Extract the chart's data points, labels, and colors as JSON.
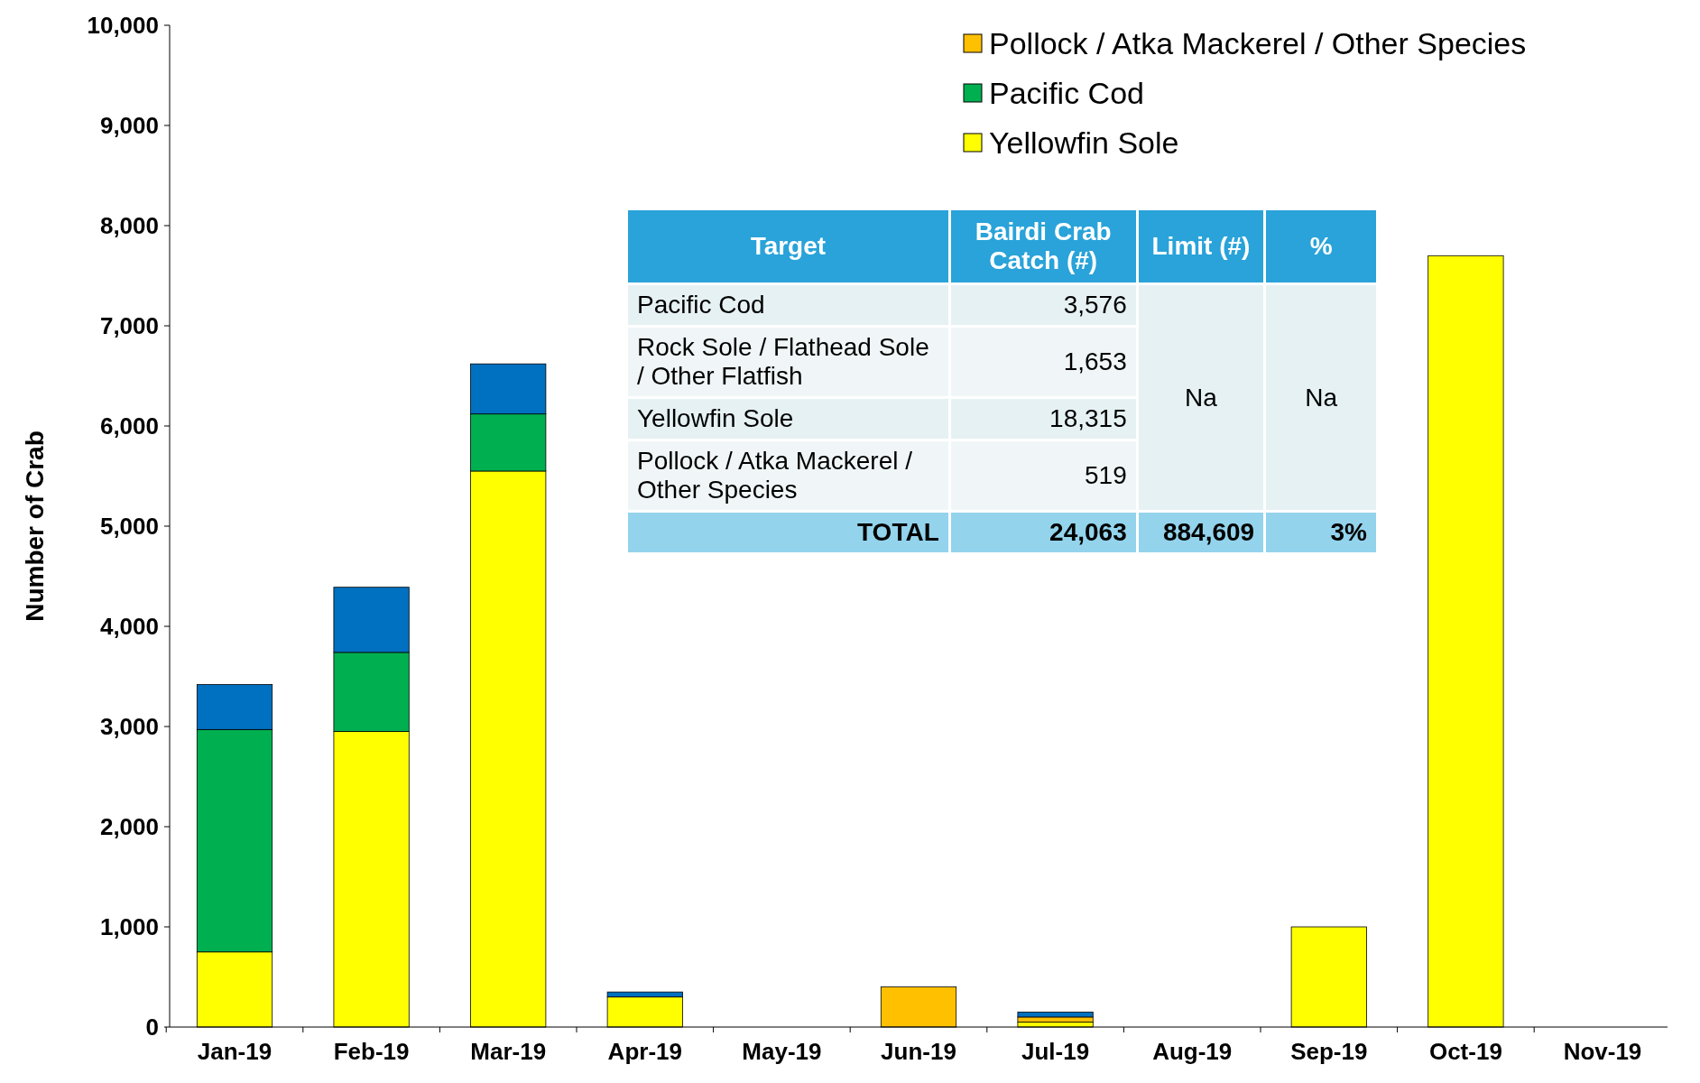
{
  "chart_data": [
    {
      "type": "bar",
      "stacked": true,
      "ylabel": "Number of Crab",
      "categories": [
        "Jan-19",
        "Feb-19",
        "Mar-19",
        "Apr-19",
        "May-19",
        "Jun-19",
        "Jul-19",
        "Aug-19",
        "Sep-19",
        "Oct-19",
        "Nov-19"
      ],
      "series": [
        {
          "name": "Yellowfin Sole",
          "color": "#ffff00",
          "values": [
            750,
            2950,
            5550,
            300,
            0,
            0,
            50,
            0,
            1000,
            7700,
            0
          ]
        },
        {
          "name": "Pacific Cod",
          "color": "#00b050",
          "values": [
            2220,
            790,
            570,
            0,
            0,
            0,
            0,
            0,
            0,
            0,
            0
          ]
        },
        {
          "name": "Pollock / Atka Mackerel / Other Species",
          "color": "#ffc000",
          "values": [
            0,
            0,
            0,
            0,
            0,
            400,
            50,
            0,
            0,
            0,
            0
          ]
        },
        {
          "color": "#0070c0",
          "values": [
            450,
            650,
            500,
            50,
            0,
            0,
            50,
            0,
            0,
            0,
            0
          ]
        }
      ],
      "ylim": [
        0,
        10000
      ],
      "yticks": [
        0,
        {
          "value": 1000,
          "label": "1,000"
        },
        {
          "value": 2000,
          "label": "2,000"
        },
        {
          "value": 3000,
          "label": "3,000"
        },
        {
          "value": 4000,
          "label": "4,000"
        },
        {
          "value": 5000,
          "label": "5,000"
        },
        {
          "value": 6000,
          "label": "6,000"
        },
        {
          "value": 7000,
          "label": "7,000"
        },
        {
          "value": 8000,
          "label": "8,000"
        },
        {
          "value": 9000,
          "label": "9,000"
        },
        {
          "value": 10000,
          "label": "10,000"
        }
      ],
      "legend": "top right"
    },
    {
      "type": "other",
      "categories": [
        "Target",
        "Bairdi Crab Catch (#)",
        "Limit (#)",
        "%"
      ],
      "y_categories": [
        "Pacific Cod",
        "Rock Sole / Flathead Sole / Other Flatfish",
        "Yellowfin Sole",
        "Pollock / Atka Mackerel / Other Species",
        "TOTAL"
      ],
      "cell_labels": [
        [
          "3,576",
          "Na",
          "Na"
        ],
        [
          "1,653",
          null,
          null
        ],
        [
          "18,315",
          null,
          null
        ],
        [
          "519",
          null,
          null
        ],
        [
          "24,063",
          "884,609",
          "3%"
        ]
      ]
    }
  ]
}
